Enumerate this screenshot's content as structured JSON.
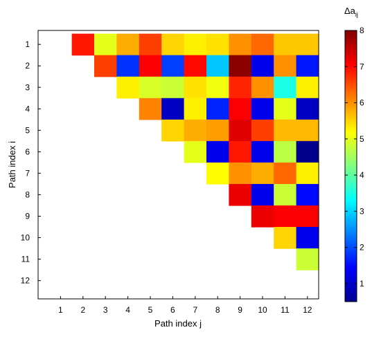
{
  "chart_data": {
    "type": "heatmap",
    "xlabel": "Path index j",
    "ylabel": "Path index i",
    "x_ticks": [
      "1",
      "2",
      "3",
      "4",
      "5",
      "6",
      "7",
      "8",
      "9",
      "10",
      "11",
      "12"
    ],
    "y_ticks": [
      "1",
      "2",
      "3",
      "4",
      "5",
      "6",
      "7",
      "8",
      "9",
      "10",
      "11",
      "12"
    ],
    "colorbar": {
      "label_main": "Δa",
      "label_sub": "ij",
      "colormap": "jet",
      "min": 0.5,
      "max": 8,
      "ticks": [
        "1",
        "2",
        "3",
        "4",
        "5",
        "6",
        "7",
        "8"
      ]
    },
    "matrix": [
      [
        null,
        6.9,
        5.0,
        5.8,
        6.6,
        5.5,
        5.3,
        5.4,
        6.0,
        6.3,
        5.6,
        5.6
      ],
      [
        null,
        null,
        6.6,
        1.8,
        7.1,
        1.9,
        7.0,
        2.9,
        7.9,
        1.3,
        6.0,
        1.6
      ],
      [
        null,
        null,
        null,
        5.3,
        4.9,
        4.8,
        5.4,
        5.1,
        6.8,
        6.0,
        3.5,
        5.3
      ],
      [
        null,
        null,
        null,
        null,
        6.1,
        1.0,
        5.3,
        1.7,
        7.1,
        1.3,
        5.0,
        1.0
      ],
      [
        null,
        null,
        null,
        null,
        null,
        5.5,
        5.8,
        5.9,
        7.3,
        6.6,
        5.7,
        5.7
      ],
      [
        null,
        null,
        null,
        null,
        null,
        null,
        5.0,
        1.3,
        6.9,
        1.3,
        4.7,
        0.6
      ],
      [
        null,
        null,
        null,
        null,
        null,
        null,
        null,
        5.2,
        6.0,
        5.8,
        6.3,
        5.3
      ],
      [
        null,
        null,
        null,
        null,
        null,
        null,
        null,
        null,
        7.2,
        1.3,
        4.8,
        1.5
      ],
      [
        null,
        null,
        null,
        null,
        null,
        null,
        null,
        null,
        null,
        7.2,
        7.1,
        7.1
      ],
      [
        null,
        null,
        null,
        null,
        null,
        null,
        null,
        null,
        null,
        null,
        5.5,
        1.3
      ],
      [
        null,
        null,
        null,
        null,
        null,
        null,
        null,
        null,
        null,
        null,
        null,
        4.8
      ],
      [
        null,
        null,
        null,
        null,
        null,
        null,
        null,
        null,
        null,
        null,
        null,
        null
      ]
    ]
  }
}
